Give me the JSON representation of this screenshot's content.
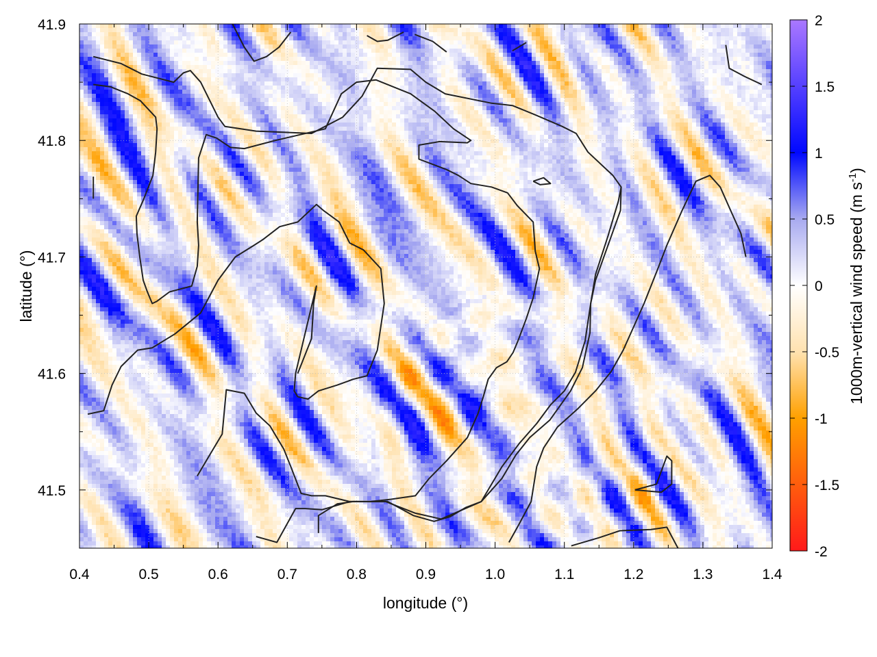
{
  "chart_data": {
    "type": "heatmap",
    "title": "",
    "xlabel": "longitude (°)",
    "ylabel": "latitude (°)",
    "xlim": [
      0.4,
      1.4
    ],
    "ylim": [
      41.45,
      41.9
    ],
    "xticks": [
      0.4,
      0.5,
      0.6,
      0.7,
      0.8,
      0.9,
      1.0,
      1.1,
      1.2,
      1.3,
      1.4
    ],
    "xtick_labels": [
      "0.4",
      "0.5",
      "0.6",
      "0.7",
      "0.8",
      "0.9",
      "1.0",
      "1.1",
      "1.2",
      "1.3",
      "1.4"
    ],
    "yticks": [
      41.5,
      41.6,
      41.7,
      41.8,
      41.9
    ],
    "ytick_labels": [
      "41.5",
      "41.6",
      "41.7",
      "41.8",
      "41.9"
    ],
    "grid": true,
    "colorbar": {
      "label": "1000m-vertical wind speed (m s",
      "label_superscript": "-1",
      "label_suffix": ")",
      "range": [
        -2,
        2
      ],
      "ticks": [
        2,
        1.5,
        1,
        0.5,
        0,
        -0.5,
        -1,
        -1.5,
        -2
      ],
      "tick_labels": [
        "2",
        "1.5",
        "1",
        "0.5",
        "0",
        "-0.5",
        "-1",
        "-1.5",
        "-2"
      ],
      "palette": [
        {
          "value": -2,
          "color": "#ff1a1a"
        },
        {
          "value": -1,
          "color": "#ffa000"
        },
        {
          "value": -0.5,
          "color": "#ffe2b0"
        },
        {
          "value": 0,
          "color": "#ffffff"
        },
        {
          "value": 0.5,
          "color": "#a8aaf0"
        },
        {
          "value": 1,
          "color": "#0008ff"
        },
        {
          "value": 2,
          "color": "#aa78ff"
        }
      ]
    },
    "contours": [
      [
        [
          0.42,
          41.872
        ],
        [
          0.46,
          41.866
        ],
        [
          0.49,
          41.857
        ],
        [
          0.536,
          41.85
        ],
        [
          0.55,
          41.858
        ],
        [
          0.56,
          41.86
        ],
        [
          0.575,
          41.85
        ],
        [
          0.6,
          41.82
        ],
        [
          0.61,
          41.812
        ],
        [
          0.655,
          41.808
        ],
        [
          0.735,
          41.806
        ],
        [
          0.78,
          41.82
        ],
        [
          0.808,
          41.838
        ],
        [
          0.83,
          41.862
        ],
        [
          0.878,
          41.861
        ],
        [
          0.9,
          41.85
        ],
        [
          0.928,
          41.84
        ],
        [
          0.995,
          41.832
        ],
        [
          1.025,
          41.83
        ],
        [
          1.058,
          41.822
        ],
        [
          1.097,
          41.812
        ],
        [
          1.117,
          41.806
        ],
        [
          1.134,
          41.79
        ],
        [
          1.17,
          41.77
        ],
        [
          1.182,
          41.76
        ],
        [
          1.181,
          41.74
        ],
        [
          1.163,
          41.71
        ],
        [
          1.145,
          41.68
        ],
        [
          1.138,
          41.66
        ],
        [
          1.137,
          41.635
        ],
        [
          1.126,
          41.605
        ],
        [
          1.109,
          41.585
        ],
        [
          1.079,
          41.56
        ],
        [
          1.05,
          41.545
        ],
        [
          1.03,
          41.53
        ],
        [
          1.01,
          41.51
        ],
        [
          0.98,
          41.49
        ],
        [
          0.922,
          41.475
        ],
        [
          0.885,
          41.48
        ],
        [
          0.842,
          41.49
        ],
        [
          0.79,
          41.49
        ],
        [
          0.75,
          41.483
        ],
        [
          0.726,
          41.484
        ],
        [
          0.712,
          41.484
        ],
        [
          0.685,
          41.455
        ],
        [
          0.655,
          41.46
        ]
      ],
      [
        [
          0.42,
          41.848
        ],
        [
          0.445,
          41.846
        ],
        [
          0.47,
          41.84
        ],
        [
          0.488,
          41.834
        ],
        [
          0.51,
          41.82
        ],
        [
          0.512,
          41.81
        ],
        [
          0.51,
          41.79
        ],
        [
          0.506,
          41.77
        ],
        [
          0.493,
          41.75
        ],
        [
          0.482,
          41.735
        ],
        [
          0.483,
          41.72
        ],
        [
          0.487,
          41.7
        ],
        [
          0.492,
          41.68
        ],
        [
          0.498,
          41.67
        ],
        [
          0.505,
          41.66
        ],
        [
          0.512,
          41.662
        ],
        [
          0.53,
          41.67
        ],
        [
          0.562,
          41.675
        ],
        [
          0.57,
          41.692
        ],
        [
          0.572,
          41.71
        ],
        [
          0.57,
          41.73
        ],
        [
          0.572,
          41.785
        ],
        [
          0.583,
          41.805
        ],
        [
          0.598,
          41.802
        ],
        [
          0.618,
          41.794
        ],
        [
          0.638,
          41.793
        ],
        [
          0.683,
          41.8
        ],
        [
          0.755,
          41.81
        ],
        [
          0.778,
          41.84
        ],
        [
          0.8,
          41.85
        ],
        [
          0.828,
          41.852
        ],
        [
          0.878,
          41.84
        ],
        [
          0.913,
          41.825
        ],
        [
          0.94,
          41.81
        ],
        [
          0.965,
          41.8
        ],
        [
          0.96,
          41.798
        ],
        [
          0.92,
          41.799
        ],
        [
          0.89,
          41.796
        ],
        [
          0.89,
          41.784
        ],
        [
          0.93,
          41.775
        ],
        [
          0.947,
          41.77
        ],
        [
          0.965,
          41.763
        ],
        [
          0.995,
          41.76
        ],
        [
          1.018,
          41.755
        ],
        [
          1.032,
          41.744
        ],
        [
          1.055,
          41.73
        ],
        [
          1.058,
          41.705
        ],
        [
          1.064,
          41.69
        ],
        [
          1.055,
          41.665
        ],
        [
          1.045,
          41.647
        ],
        [
          1.033,
          41.628
        ],
        [
          1.026,
          41.618
        ],
        [
          1.017,
          41.61
        ],
        [
          1.002,
          41.605
        ],
        [
          0.99,
          41.595
        ],
        [
          0.983,
          41.58
        ],
        [
          0.975,
          41.565
        ],
        [
          0.96,
          41.545
        ],
        [
          0.93,
          41.525
        ],
        [
          0.905,
          41.51
        ],
        [
          0.885,
          41.495
        ],
        [
          0.85,
          41.492
        ],
        [
          0.82,
          41.49
        ],
        [
          0.79,
          41.49
        ],
        [
          0.755,
          41.495
        ],
        [
          0.735,
          41.495
        ],
        [
          0.72,
          41.497
        ],
        [
          0.705,
          41.52
        ],
        [
          0.695,
          41.535
        ],
        [
          0.675,
          41.555
        ],
        [
          0.655,
          41.566
        ],
        [
          0.638,
          41.583
        ],
        [
          0.612,
          41.586
        ],
        [
          0.606,
          41.548
        ],
        [
          0.588,
          41.53
        ],
        [
          0.57,
          41.512
        ]
      ],
      [
        [
          0.412,
          41.565
        ],
        [
          0.435,
          41.568
        ],
        [
          0.447,
          41.59
        ],
        [
          0.46,
          41.606
        ],
        [
          0.484,
          41.62
        ],
        [
          0.505,
          41.622
        ],
        [
          0.538,
          41.634
        ],
        [
          0.575,
          41.652
        ],
        [
          0.6,
          41.68
        ],
        [
          0.625,
          41.7
        ],
        [
          0.652,
          41.71
        ],
        [
          0.665,
          41.715
        ],
        [
          0.689,
          41.726
        ],
        [
          0.715,
          41.73
        ],
        [
          0.742,
          41.745
        ],
        [
          0.752,
          41.74
        ],
        [
          0.775,
          41.73
        ],
        [
          0.79,
          41.712
        ],
        [
          0.81,
          41.706
        ],
        [
          0.835,
          41.69
        ],
        [
          0.84,
          41.66
        ],
        [
          0.83,
          41.62
        ],
        [
          0.815,
          41.598
        ],
        [
          0.795,
          41.595
        ],
        [
          0.772,
          41.59
        ],
        [
          0.745,
          41.585
        ],
        [
          0.73,
          41.578
        ],
        [
          0.715,
          41.58
        ],
        [
          0.71,
          41.585
        ],
        [
          0.712,
          41.6
        ],
        [
          0.72,
          41.62
        ],
        [
          0.73,
          41.645
        ],
        [
          0.742,
          41.675
        ],
        [
          0.738,
          41.66
        ],
        [
          0.735,
          41.63
        ],
        [
          0.715,
          41.6
        ]
      ],
      [
        [
          0.745,
          41.463
        ],
        [
          0.745,
          41.478
        ],
        [
          0.772,
          41.488
        ],
        [
          0.795,
          41.49
        ],
        [
          0.845,
          41.49
        ],
        [
          0.882,
          41.478
        ],
        [
          0.912,
          41.473
        ],
        [
          0.935,
          41.477
        ],
        [
          0.958,
          41.485
        ],
        [
          0.98,
          41.49
        ],
        [
          1.01,
          41.52
        ],
        [
          1.035,
          41.54
        ],
        [
          1.06,
          41.557
        ],
        [
          1.08,
          41.573
        ],
        [
          1.1,
          41.585
        ],
        [
          1.116,
          41.601
        ],
        [
          1.13,
          41.628
        ],
        [
          1.138,
          41.66
        ],
        [
          1.145,
          41.685
        ],
        [
          1.163,
          41.718
        ],
        [
          1.178,
          41.748
        ],
        [
          1.182,
          41.76
        ]
      ],
      [
        [
          1.02,
          41.455
        ],
        [
          1.034,
          41.47
        ],
        [
          1.052,
          41.49
        ],
        [
          1.06,
          41.52
        ],
        [
          1.07,
          41.536
        ],
        [
          1.09,
          41.554
        ],
        [
          1.12,
          41.57
        ],
        [
          1.145,
          41.585
        ],
        [
          1.168,
          41.602
        ],
        [
          1.185,
          41.62
        ],
        [
          1.2,
          41.64
        ],
        [
          1.215,
          41.66
        ],
        [
          1.235,
          41.69
        ],
        [
          1.248,
          41.71
        ],
        [
          1.27,
          41.74
        ],
        [
          1.29,
          41.765
        ],
        [
          1.31,
          41.77
        ],
        [
          1.325,
          41.76
        ],
        [
          1.34,
          41.74
        ],
        [
          1.355,
          41.72
        ],
        [
          1.362,
          41.7
        ]
      ],
      [
        [
          1.11,
          41.452
        ],
        [
          1.15,
          41.459
        ],
        [
          1.18,
          41.465
        ],
        [
          1.225,
          41.466
        ],
        [
          1.248,
          41.468
        ],
        [
          1.264,
          41.45
        ]
      ],
      [
        [
          1.202,
          41.5
        ],
        [
          1.233,
          41.505
        ],
        [
          1.248,
          41.529
        ],
        [
          1.255,
          41.525
        ],
        [
          1.255,
          41.505
        ],
        [
          1.24,
          41.498
        ],
        [
          1.202,
          41.5
        ]
      ],
      [
        [
          1.055,
          41.765
        ],
        [
          1.07,
          41.768
        ],
        [
          1.08,
          41.763
        ],
        [
          1.065,
          41.762
        ],
        [
          1.055,
          41.765
        ]
      ],
      [
        [
          0.621,
          41.9
        ],
        [
          0.638,
          41.88
        ],
        [
          0.652,
          41.868
        ],
        [
          0.67,
          41.872
        ],
        [
          0.688,
          41.88
        ],
        [
          0.705,
          41.893
        ]
      ],
      [
        [
          0.815,
          41.89
        ],
        [
          0.83,
          41.885
        ],
        [
          0.845,
          41.886
        ],
        [
          0.868,
          41.893
        ]
      ],
      [
        [
          0.884,
          41.891
        ],
        [
          0.91,
          41.885
        ],
        [
          0.93,
          41.876
        ]
      ],
      [
        [
          1.333,
          41.882
        ],
        [
          1.338,
          41.862
        ],
        [
          1.36,
          41.855
        ],
        [
          1.385,
          41.848
        ]
      ],
      [
        [
          1.025,
          41.877
        ],
        [
          1.045,
          41.884
        ]
      ],
      [
        [
          0.42,
          41.769
        ],
        [
          0.42,
          41.75
        ]
      ]
    ]
  }
}
